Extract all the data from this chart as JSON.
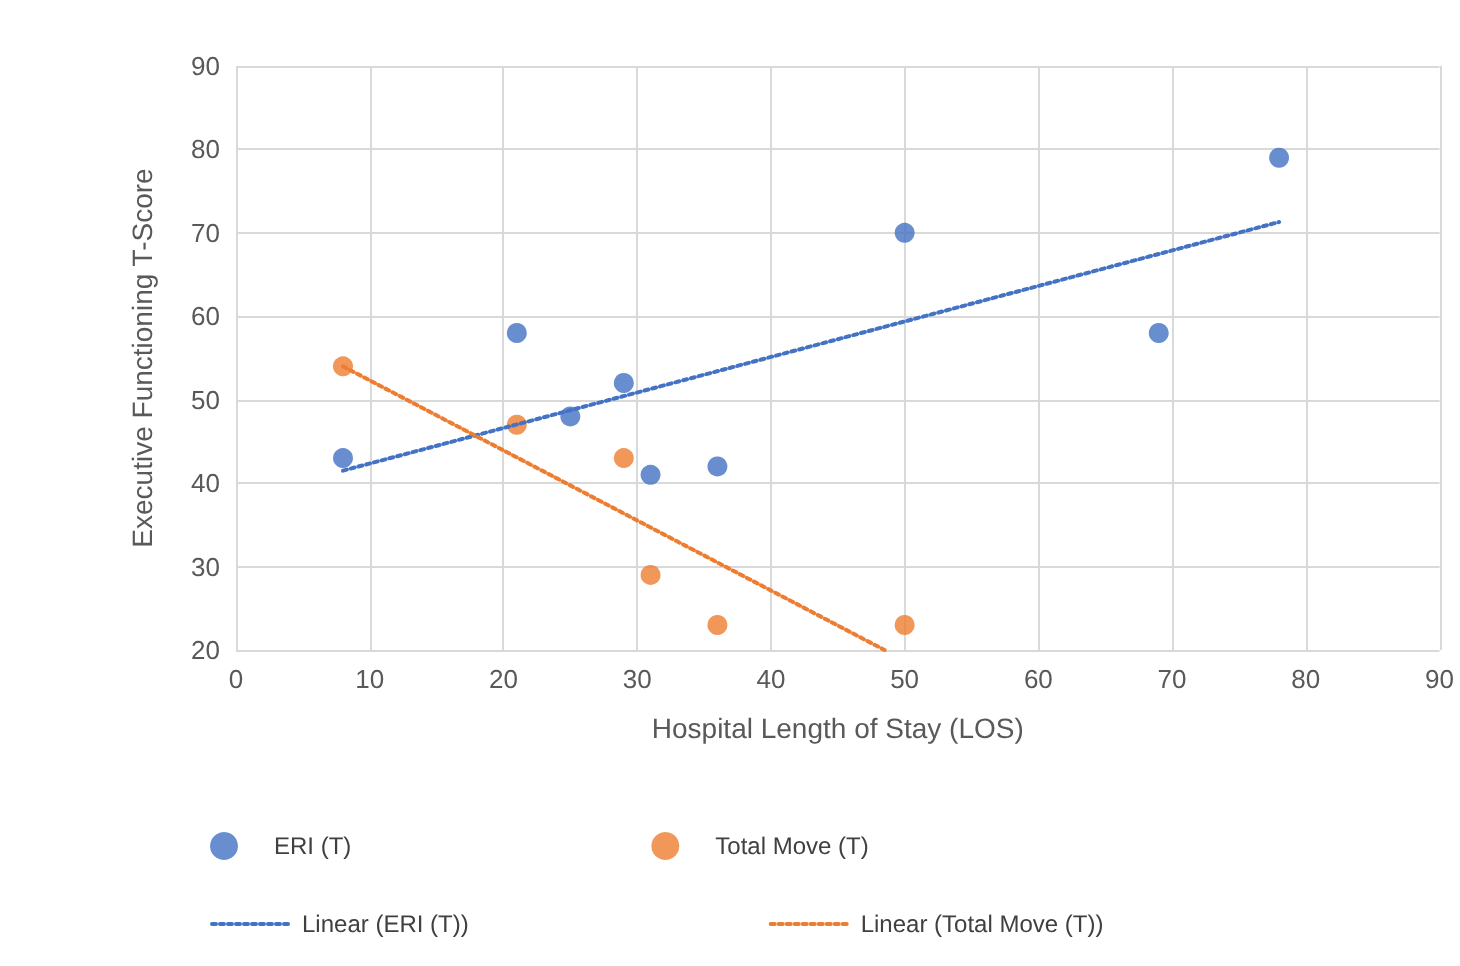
{
  "chart_data": {
    "type": "scatter",
    "xlabel": "Hospital Length of Stay (LOS)",
    "ylabel": "Executive Functioning T-Score",
    "xlim": [
      0,
      90
    ],
    "xticks": [
      0,
      10,
      20,
      30,
      40,
      50,
      60,
      70,
      80,
      90
    ],
    "ylim": [
      20,
      90
    ],
    "yticks": [
      20,
      30,
      40,
      50,
      60,
      70,
      80,
      90
    ],
    "grid": true,
    "legend": "bottom",
    "series": [
      {
        "name": "ERI (T)",
        "marker": "circle",
        "color": "#4472c4",
        "x": [
          8,
          21,
          25,
          29,
          31,
          36,
          50,
          69,
          78
        ],
        "values": [
          43,
          58,
          48,
          52,
          41,
          42,
          70,
          58,
          79
        ]
      },
      {
        "name": "Total Move (T)",
        "marker": "circle",
        "color": "#ed7d31",
        "x": [
          8,
          21,
          29,
          31,
          36,
          50
        ],
        "values": [
          54,
          47,
          43,
          29,
          23,
          23
        ]
      },
      {
        "name": "Linear (ERI (T))",
        "type": "line",
        "marker": "none",
        "line_style": "dotted",
        "color": "#4472c4",
        "x": [
          8,
          78
        ],
        "values": [
          41.5,
          71.3
        ]
      },
      {
        "name": "Linear (Total Move (T))",
        "type": "line",
        "marker": "none",
        "line_style": "dotted",
        "color": "#ed7d31",
        "x": [
          8,
          48.5
        ],
        "values": [
          54,
          20
        ]
      }
    ]
  }
}
